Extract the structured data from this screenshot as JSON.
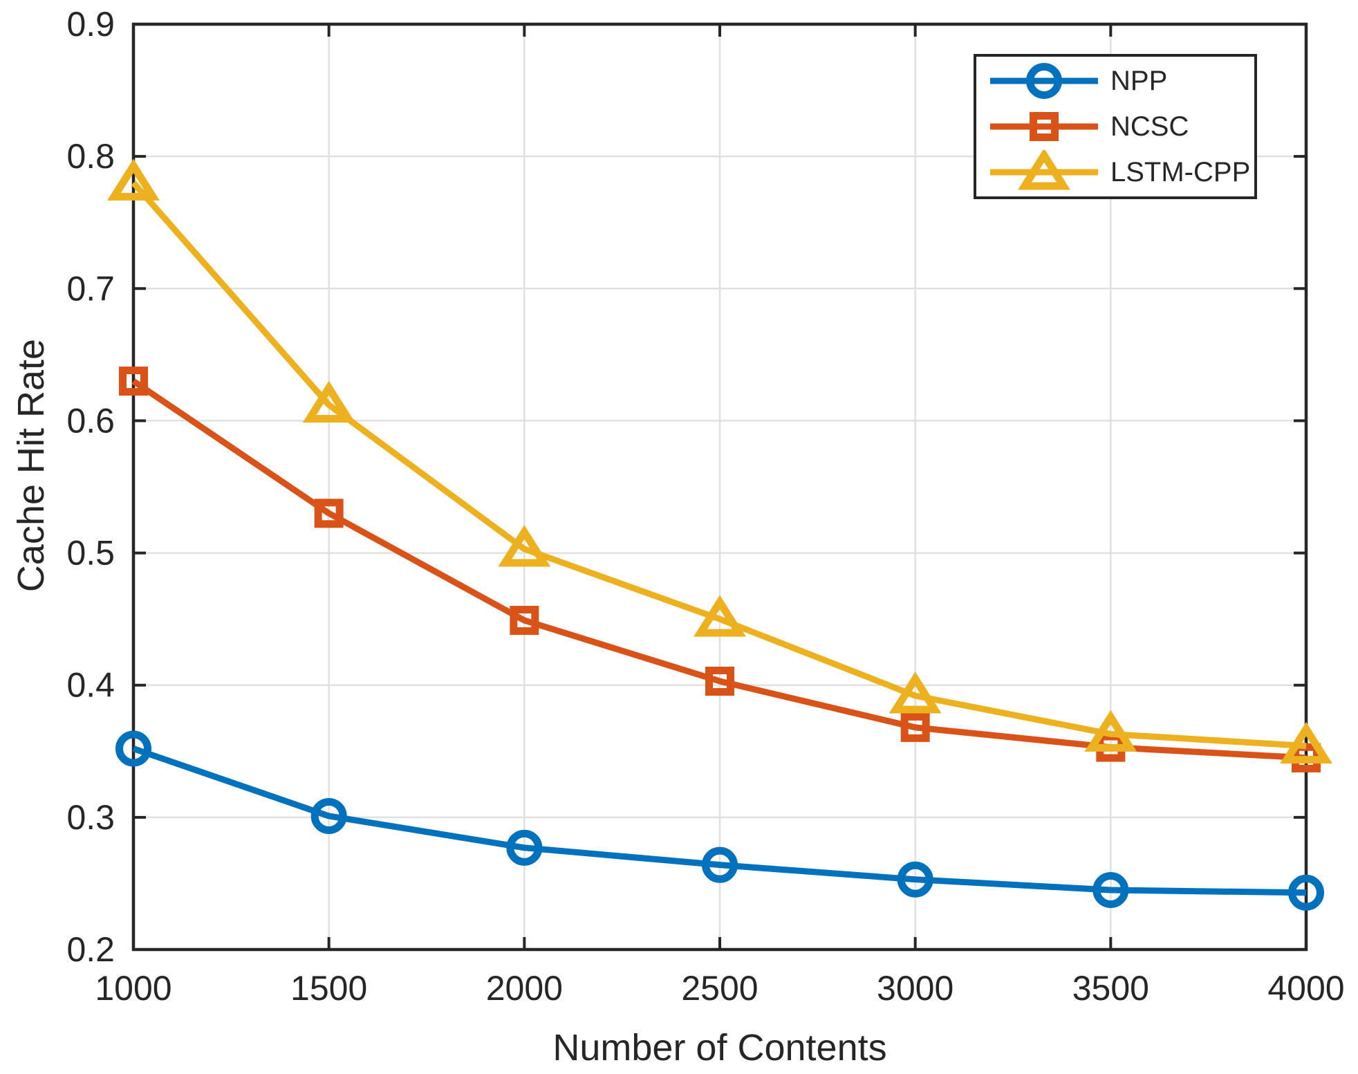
{
  "chart_data": {
    "type": "line",
    "title": "",
    "xlabel": "Number of Contents",
    "ylabel": "Cache Hit Rate",
    "x": [
      1000,
      1500,
      2000,
      2500,
      3000,
      3500,
      4000
    ],
    "series": [
      {
        "name": "NPP",
        "color": "#0072BD",
        "marker": "circle",
        "values": [
          0.352,
          0.301,
          0.277,
          0.264,
          0.253,
          0.245,
          0.243
        ]
      },
      {
        "name": "NCSC",
        "color": "#D95319",
        "marker": "square",
        "values": [
          0.63,
          0.53,
          0.449,
          0.403,
          0.368,
          0.353,
          0.345
        ]
      },
      {
        "name": "LSTM-CPP",
        "color": "#EDB120",
        "marker": "triangle",
        "values": [
          0.78,
          0.612,
          0.503,
          0.45,
          0.392,
          0.363,
          0.354
        ]
      }
    ],
    "xlim": [
      1000,
      4000
    ],
    "ylim": [
      0.2,
      0.9
    ],
    "xticks": [
      1000,
      1500,
      2000,
      2500,
      3000,
      3500,
      4000
    ],
    "yticks": [
      0.2,
      0.3,
      0.4,
      0.5,
      0.6,
      0.7,
      0.8,
      0.9
    ],
    "grid": true,
    "legend_position": "top-right",
    "axis_color": "#262626",
    "grid_color": "#E0E0E0",
    "background_color": "#FFFFFF"
  }
}
